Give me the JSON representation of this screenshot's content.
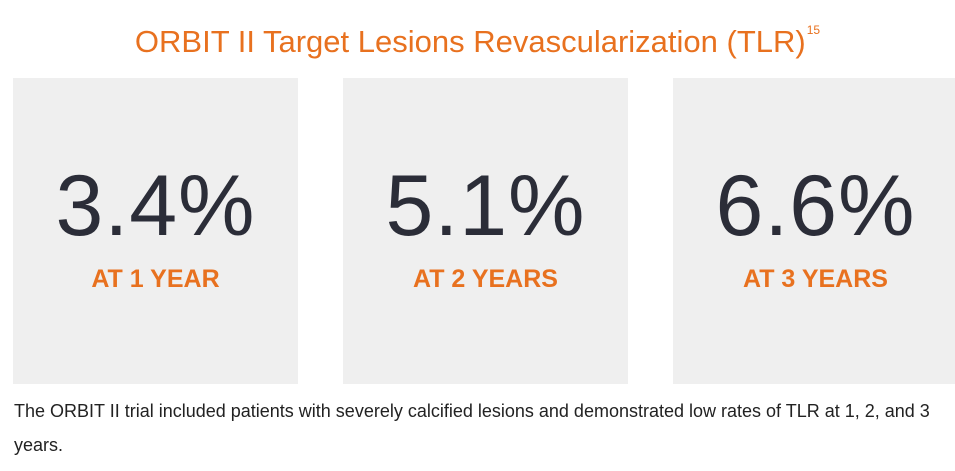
{
  "title": {
    "text": "ORBIT II Target Lesions Revascularization (TLR)",
    "superscript": "15"
  },
  "stats": [
    {
      "value": "3.4%",
      "label": "AT 1 YEAR"
    },
    {
      "value": "5.1%",
      "label": "AT 2 YEARS"
    },
    {
      "value": "6.6%",
      "label": "AT 3 YEARS"
    }
  ],
  "caption": "The ORBIT II trial included patients with severely calcified lesions and demonstrated low rates of TLR at 1, 2, and 3 years.",
  "colors": {
    "accent": "#e8711f",
    "value_text": "#2b2d38",
    "card_background": "#efefef"
  }
}
